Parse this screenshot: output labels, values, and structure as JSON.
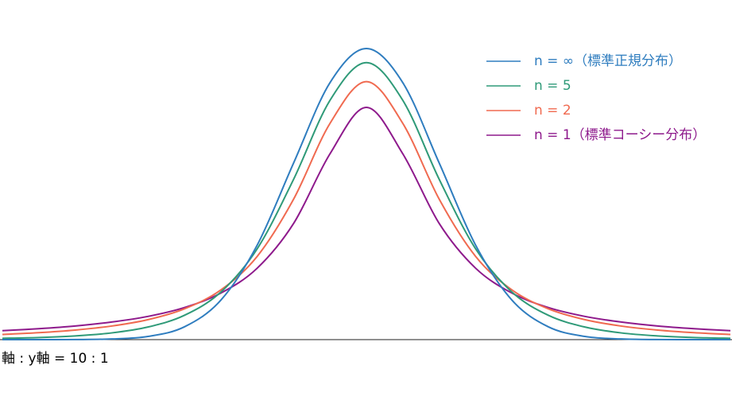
{
  "chart_data": {
    "type": "line",
    "annotation": "軸 : y軸 = 10 : 1",
    "x": [
      -5,
      -4.5,
      -4,
      -3.5,
      -3,
      -2.5,
      -2,
      -1.5,
      -1,
      -0.5,
      0,
      0.5,
      1,
      1.5,
      2,
      2.5,
      3,
      3.5,
      4,
      4.5,
      5
    ],
    "series": [
      {
        "name": "n = ∞（標準正規分布）",
        "color": "#2f7dbf",
        "values": [
          0.0,
          0.0,
          0.0001,
          0.0009,
          0.0044,
          0.0175,
          0.054,
          0.1295,
          0.242,
          0.3521,
          0.3989,
          0.3521,
          0.242,
          0.1295,
          0.054,
          0.0175,
          0.0044,
          0.0009,
          0.0001,
          0.0,
          0.0
        ]
      },
      {
        "name": "n = 5",
        "color": "#2f9a78",
        "values": [
          0.0018,
          0.0029,
          0.0051,
          0.0092,
          0.0173,
          0.0333,
          0.0651,
          0.1245,
          0.2197,
          0.3279,
          0.3796,
          0.3279,
          0.2197,
          0.1245,
          0.0651,
          0.0333,
          0.0173,
          0.0092,
          0.0051,
          0.0029,
          0.0018
        ]
      },
      {
        "name": "n = 2",
        "color": "#f06a50",
        "values": [
          0.0071,
          0.0095,
          0.0131,
          0.0186,
          0.0274,
          0.0422,
          0.068,
          0.1141,
          0.1925,
          0.2963,
          0.3536,
          0.2963,
          0.1925,
          0.1141,
          0.068,
          0.0422,
          0.0274,
          0.0186,
          0.0131,
          0.0095,
          0.0071
        ]
      },
      {
        "name": "n = 1（標準コーシー分布）",
        "color": "#8e1a8c",
        "values": [
          0.0122,
          0.015,
          0.0187,
          0.0241,
          0.0318,
          0.0439,
          0.0637,
          0.0979,
          0.1592,
          0.2546,
          0.3183,
          0.2546,
          0.1592,
          0.0979,
          0.0637,
          0.0439,
          0.0318,
          0.0241,
          0.0187,
          0.015,
          0.0122
        ]
      }
    ],
    "xlim": [
      -5,
      5
    ],
    "ylim": [
      0,
      0.4
    ],
    "legend": "upper right"
  }
}
